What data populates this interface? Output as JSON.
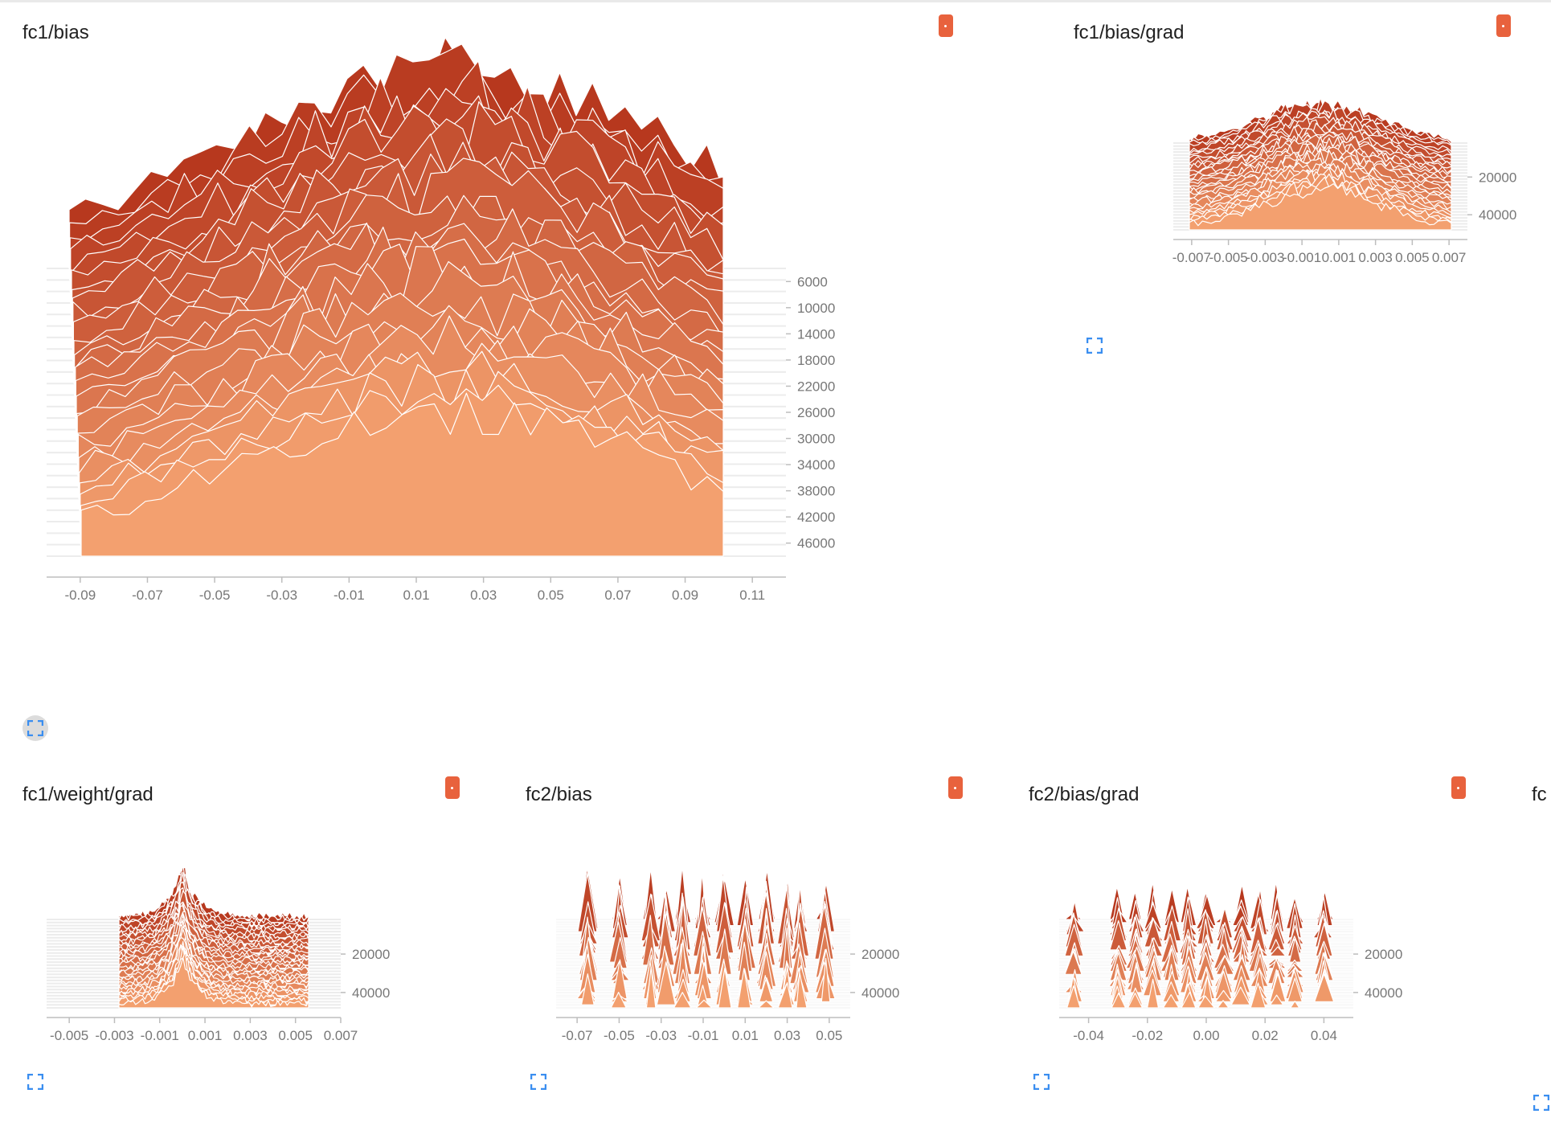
{
  "colors": {
    "oldest": "#b7381e",
    "newest": "#f3a06f",
    "outline": "#ffffff",
    "axis": "#bdbdbd",
    "tick_text": "#777777",
    "expand_icon": "#3a8ef0",
    "tag": "#e8623d"
  },
  "icons": {
    "expand": "fullscreen-expand-icon",
    "color_tag": "color-tag-icon"
  },
  "cards": [
    {
      "title": "fc1/bias",
      "chart_data": {
        "type": "area",
        "mode": "offset histogram (stacked over steps)",
        "x_range": [
          -0.1,
          0.12
        ],
        "x_ticks": [
          "-0.09",
          "-0.07",
          "-0.05",
          "-0.03",
          "-0.01",
          "0.01",
          "0.03",
          "0.05",
          "0.07",
          "0.09",
          "0.11"
        ],
        "x_tick_values": [
          -0.09,
          -0.07,
          -0.05,
          -0.03,
          -0.01,
          0.01,
          0.03,
          0.05,
          0.07,
          0.09,
          0.11
        ],
        "y_ticks": [
          "6000",
          "10000",
          "14000",
          "18000",
          "22000",
          "26000",
          "30000",
          "34000",
          "38000",
          "42000",
          "46000"
        ],
        "y_tick_values": [
          6000,
          10000,
          14000,
          18000,
          22000,
          26000,
          30000,
          34000,
          38000,
          42000,
          46000
        ],
        "steps": [
          4000,
          48000
        ],
        "series_count": 26,
        "envelope_center": 0.02,
        "peak_count": 120
      }
    },
    {
      "title": "fc1/bias/grad",
      "chart_data": {
        "type": "area",
        "mode": "offset histogram (stacked over steps)",
        "x_range": [
          -0.008,
          0.008
        ],
        "x_ticks": [
          "-0.007",
          "-0.005",
          "-0.003",
          "-0.001",
          "0.001",
          "0.003",
          "0.005",
          "0.007"
        ],
        "x_tick_values": [
          -0.007,
          -0.005,
          -0.003,
          -0.001,
          0.001,
          0.003,
          0.005,
          0.007
        ],
        "y_ticks": [
          "20000",
          "40000"
        ],
        "y_tick_values": [
          20000,
          40000
        ],
        "steps": [
          2000,
          48000
        ],
        "series_count": 30,
        "envelope_center": 0.0,
        "peak_count": 900
      }
    },
    {
      "title": "fc1/weight/grad",
      "chart_data": {
        "type": "area",
        "mode": "offset histogram (stacked over steps)",
        "x_range": [
          -0.006,
          0.007
        ],
        "x_ticks": [
          "-0.005",
          "-0.003",
          "-0.001",
          "0.001",
          "0.003",
          "0.005",
          "0.007"
        ],
        "x_tick_values": [
          -0.005,
          -0.003,
          -0.001,
          0.001,
          0.003,
          0.005,
          0.007
        ],
        "y_ticks": [
          "20000",
          "40000"
        ],
        "y_tick_values": [
          20000,
          40000
        ],
        "steps": [
          2000,
          48000
        ],
        "series_count": 30,
        "envelope_center": 0.0,
        "peak_count": 400000
      }
    },
    {
      "title": "fc2/bias",
      "chart_data": {
        "type": "area",
        "mode": "offset histogram (stacked over steps)",
        "x_range": [
          -0.08,
          0.06
        ],
        "x_ticks": [
          "-0.07",
          "-0.05",
          "-0.03",
          "-0.01",
          "0.01",
          "0.03",
          "0.05"
        ],
        "x_tick_values": [
          -0.07,
          -0.05,
          -0.03,
          -0.01,
          0.01,
          0.03,
          0.05
        ],
        "y_ticks": [
          "20000",
          "40000"
        ],
        "y_tick_values": [
          20000,
          40000
        ],
        "steps": [
          2000,
          48000
        ],
        "series_count": 30,
        "spikes": [
          -0.065,
          -0.05,
          -0.035,
          -0.028,
          -0.02,
          -0.01,
          0.0,
          0.01,
          0.02,
          0.03,
          0.036,
          0.048
        ]
      }
    },
    {
      "title": "fc2/bias/grad",
      "chart_data": {
        "type": "area",
        "mode": "offset histogram (stacked over steps)",
        "x_range": [
          -0.05,
          0.05
        ],
        "x_ticks": [
          "-0.04",
          "-0.02",
          "0.00",
          "0.02",
          "0.04"
        ],
        "x_tick_values": [
          -0.04,
          -0.02,
          0.0,
          0.02,
          0.04
        ],
        "y_ticks": [
          "20000",
          "40000"
        ],
        "y_tick_values": [
          20000,
          40000
        ],
        "steps": [
          2000,
          48000
        ],
        "series_count": 30,
        "spikes": [
          -0.045,
          -0.03,
          -0.024,
          -0.018,
          -0.012,
          -0.006,
          0.0,
          0.006,
          0.012,
          0.018,
          0.024,
          0.03,
          0.04
        ]
      }
    },
    {
      "title": "fc"
    }
  ]
}
